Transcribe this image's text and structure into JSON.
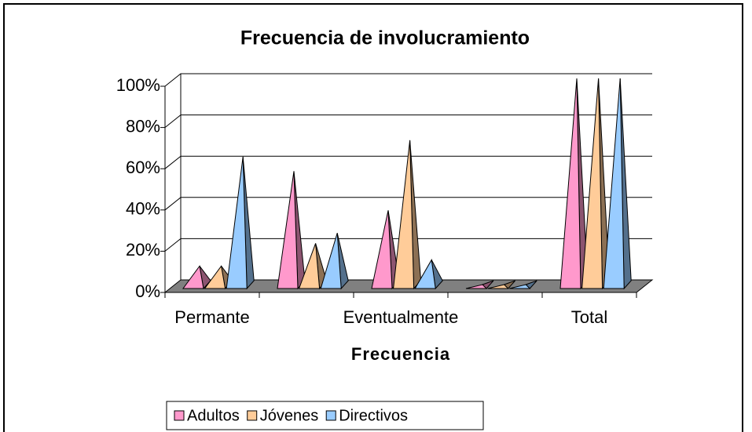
{
  "chart_data": {
    "type": "pyramid3d",
    "title": "Frecuencia de involucramiento",
    "x_label": "Frecuencia",
    "categories": [
      "Permante",
      null,
      "Eventualmente",
      null,
      "Total"
    ],
    "series": [
      {
        "name": "Adultos",
        "color": "#ff99cc",
        "values": [
          9,
          55,
          36,
          0,
          100
        ]
      },
      {
        "name": "Jóvenes",
        "color": "#ffcc99",
        "values": [
          9,
          20,
          70,
          0,
          100
        ]
      },
      {
        "name": "Directivos",
        "color": "#99ccff",
        "values": [
          62,
          25,
          12,
          0,
          100
        ]
      }
    ],
    "ylim": [
      0,
      100
    ],
    "yticks": [
      {
        "value": 0,
        "label": "0%"
      },
      {
        "value": 20,
        "label": "20%"
      },
      {
        "value": 40,
        "label": "40%"
      },
      {
        "value": 60,
        "label": "60%"
      },
      {
        "value": 80,
        "label": "80%"
      },
      {
        "value": 100,
        "label": "100%"
      }
    ],
    "grid": true
  }
}
